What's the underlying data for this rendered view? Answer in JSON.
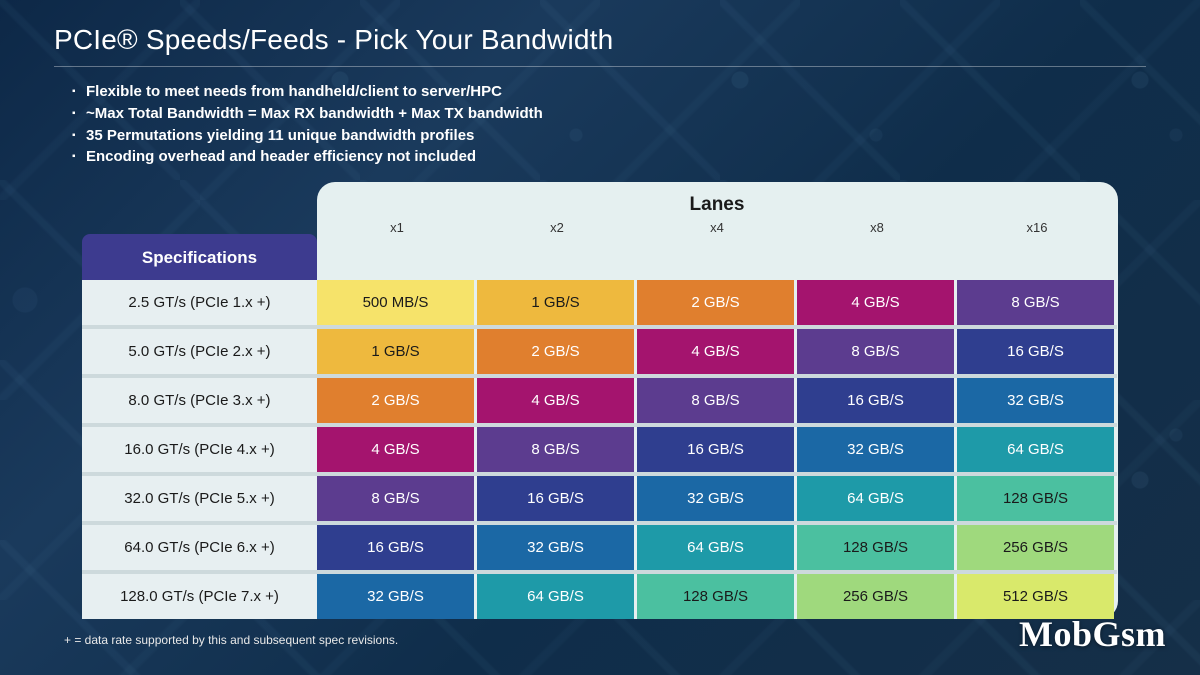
{
  "title": "PCIe® Speeds/Feeds - Pick Your Bandwidth",
  "bullets": [
    "Flexible to meet needs from handheld/client to server/HPC",
    "~Max Total Bandwidth = Max RX bandwidth + Max TX bandwidth",
    "35 Permutations yielding 11 unique bandwidth profiles",
    "Encoding overhead and header efficiency not included"
  ],
  "table": {
    "spec_header": "Specifications",
    "lanes_header": "Lanes",
    "lane_cols": [
      "x1",
      "x2",
      "x4",
      "x8",
      "x16"
    ],
    "rows": [
      {
        "spec": "2.5 GT/s (PCIe 1.x +)",
        "cells": [
          "500 MB/S",
          "1 GB/S",
          "2 GB/S",
          "4 GB/S",
          "8 GB/S"
        ]
      },
      {
        "spec": "5.0 GT/s (PCIe 2.x +)",
        "cells": [
          "1 GB/S",
          "2 GB/S",
          "4 GB/S",
          "8 GB/S",
          "16 GB/S"
        ]
      },
      {
        "spec": "8.0 GT/s (PCIe 3.x +)",
        "cells": [
          "2 GB/S",
          "4 GB/S",
          "8 GB/S",
          "16 GB/S",
          "32 GB/S"
        ]
      },
      {
        "spec": "16.0 GT/s (PCIe 4.x +)",
        "cells": [
          "4 GB/S",
          "8 GB/S",
          "16 GB/S",
          "32 GB/S",
          "64 GB/S"
        ]
      },
      {
        "spec": "32.0 GT/s (PCIe 5.x +)",
        "cells": [
          "8 GB/S",
          "16 GB/S",
          "32 GB/S",
          "64 GB/S",
          "128 GB/S"
        ]
      },
      {
        "spec": "64.0 GT/s (PCIe 6.x +)",
        "cells": [
          "16 GB/S",
          "32 GB/S",
          "64 GB/S",
          "128 GB/S",
          "256 GB/S"
        ]
      },
      {
        "spec": "128.0 GT/s (PCIe 7.x +)",
        "cells": [
          "32 GB/S",
          "64 GB/S",
          "128 GB/S",
          "256 GB/S",
          "512 GB/S"
        ]
      }
    ],
    "colors": {
      "diag0": "#f6e36a",
      "diag1": "#eeb93e",
      "diag2": "#e07f2e",
      "diag3": "#a4146e",
      "diag4": "#5c3c8f",
      "diag5": "#2f3e8f",
      "diag6": "#1b68a5",
      "diag7": "#1e9aa8",
      "diag8": "#4bc0a0",
      "diag9": "#9fd97d",
      "diag10": "#d9e96b"
    },
    "cell_diag": [
      [
        0,
        1,
        2,
        3,
        4
      ],
      [
        1,
        2,
        3,
        4,
        5
      ],
      [
        2,
        3,
        4,
        5,
        6
      ],
      [
        3,
        4,
        5,
        6,
        7
      ],
      [
        4,
        5,
        6,
        7,
        8
      ],
      [
        5,
        6,
        7,
        8,
        9
      ],
      [
        6,
        7,
        8,
        9,
        10
      ]
    ],
    "dark_text_diags": [
      0,
      1,
      8,
      9,
      10
    ],
    "spec_cell_bg": "#e7eff1",
    "spec_header_bg": "#3d3b8f",
    "lanes_panel_bg": "#e5f0f0",
    "row_gap_bg": "#cdd9dc"
  },
  "footnote": "+ = data rate supported by this and subsequent spec revisions.",
  "watermark": "MobGsm",
  "background": {
    "gradient": [
      "#0d2847",
      "#1a3a5c",
      "#0f2d4a",
      "#152f48"
    ]
  },
  "typography": {
    "title_fontsize": 28,
    "bullet_fontsize": 15,
    "header_fontsize": 17,
    "cell_fontsize": 15,
    "footnote_fontsize": 12,
    "watermark_fontsize": 36
  }
}
